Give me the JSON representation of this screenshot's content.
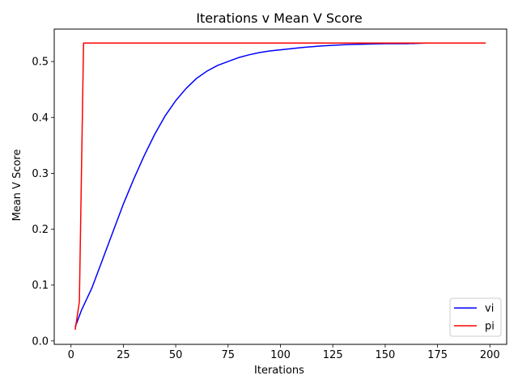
{
  "chart_data": {
    "type": "line",
    "title": "Iterations v Mean V Score",
    "xlabel": "Iterations",
    "ylabel": "Mean V Score",
    "xlim": [
      -8,
      208
    ],
    "ylim": [
      -0.006,
      0.558
    ],
    "xticks": [
      0,
      25,
      50,
      75,
      100,
      125,
      150,
      175,
      200
    ],
    "yticks": [
      0.0,
      0.1,
      0.2,
      0.3,
      0.4,
      0.5
    ],
    "grid": true,
    "legend_position": "lower-right",
    "series": [
      {
        "name": "vi",
        "color": "#0000ff",
        "x": [
          2,
          5,
          10,
          15,
          20,
          25,
          30,
          35,
          40,
          45,
          50,
          55,
          60,
          65,
          70,
          75,
          80,
          85,
          90,
          95,
          100,
          110,
          120,
          130,
          140,
          150,
          160,
          170,
          180,
          190,
          198
        ],
        "y": [
          0.025,
          0.055,
          0.095,
          0.145,
          0.195,
          0.245,
          0.29,
          0.332,
          0.37,
          0.403,
          0.43,
          0.452,
          0.47,
          0.483,
          0.493,
          0.5,
          0.507,
          0.512,
          0.516,
          0.519,
          0.521,
          0.525,
          0.528,
          0.53,
          0.531,
          0.532,
          0.532,
          0.533,
          0.533,
          0.533,
          0.533
        ]
      },
      {
        "name": "pi",
        "color": "#ff0000",
        "x": [
          2,
          3,
          4,
          6,
          10,
          50,
          100,
          150,
          198
        ],
        "y": [
          0.02,
          0.045,
          0.07,
          0.533,
          0.533,
          0.533,
          0.533,
          0.533,
          0.533
        ]
      }
    ]
  }
}
